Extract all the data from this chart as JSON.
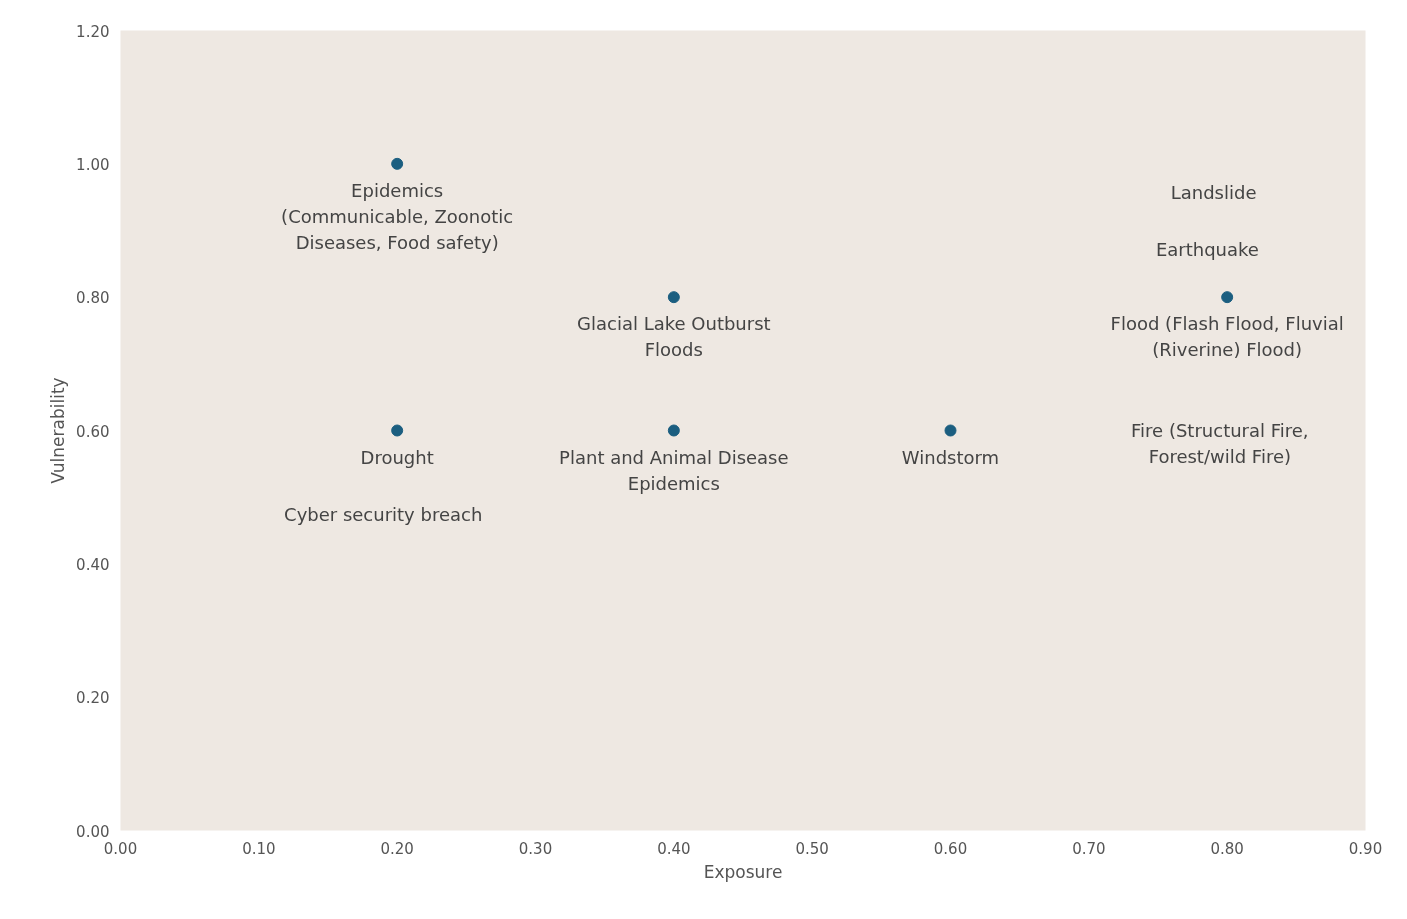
{
  "chart_data": {
    "type": "scatter",
    "xlabel": "Exposure",
    "ylabel": "Vulnerability",
    "xlim": [
      0,
      0.9
    ],
    "ylim": [
      0,
      1.2
    ],
    "xticks": [
      {
        "value": 0,
        "label": "0.00"
      },
      {
        "value": 0.1,
        "label": "0.10"
      },
      {
        "value": 0.2,
        "label": "0.20"
      },
      {
        "value": 0.3,
        "label": "0.30"
      },
      {
        "value": 0.4,
        "label": "0.40"
      },
      {
        "value": 0.5,
        "label": "0.50"
      },
      {
        "value": 0.6,
        "label": "0.60"
      },
      {
        "value": 0.7,
        "label": "0.70"
      },
      {
        "value": 0.8,
        "label": "0.80"
      },
      {
        "value": 0.9,
        "label": "0.90"
      }
    ],
    "yticks": [
      {
        "value": 0,
        "label": "0.00"
      },
      {
        "value": 0.2,
        "label": "0.20"
      },
      {
        "value": 0.4,
        "label": "0.40"
      },
      {
        "value": 0.6,
        "label": "0.60"
      },
      {
        "value": 0.8,
        "label": "0.80"
      },
      {
        "value": 1.0,
        "label": "1.00"
      },
      {
        "value": 1.2,
        "label": "1.20"
      }
    ],
    "grid": false,
    "marker": "circle",
    "series": [
      {
        "color": "#1b5e80",
        "x": [
          0.2,
          0.4,
          0.8,
          0.2,
          0.4,
          0.6
        ],
        "values": [
          1.0,
          0.8,
          0.8,
          0.6,
          0.6,
          0.6
        ]
      }
    ],
    "annotations": [
      {
        "text": "Epidemics\n(Communicable, Zoonotic\nDiseases, Food safety)",
        "x": 0.2,
        "y": 1.0
      },
      {
        "text": "Glacial Lake Outburst\nFloods",
        "x": 0.4,
        "y": 0.8
      },
      "Landslide",
      "Earthquake",
      {
        "text": "Flood (Flash Flood, Fluvial\n(Riverine) Flood)",
        "x": 0.8,
        "y": 0.8
      },
      "Fire (Structural Fire,\nForest/wild Fire)",
      {
        "text": "Drought",
        "x": 0.2,
        "y": 0.6
      },
      "Cyber security breach",
      {
        "text": "Plant and Animal Disease\nEpidemics",
        "x": 0.4,
        "y": 0.6
      },
      {
        "text": "Windstorm",
        "x": 0.6,
        "y": 0.6
      }
    ]
  }
}
